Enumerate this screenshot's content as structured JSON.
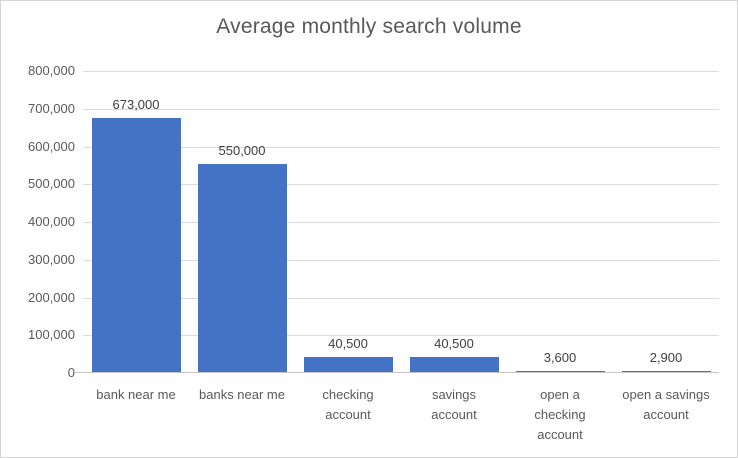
{
  "chart_data": {
    "type": "bar",
    "title": "Average monthly search volume",
    "categories": [
      "bank near me",
      "banks near me",
      "checking account",
      "savings account",
      "open a checking account",
      "open a savings account"
    ],
    "category_label_lines": [
      [
        "bank near me"
      ],
      [
        "banks near me"
      ],
      [
        "checking",
        "account"
      ],
      [
        "savings",
        "account"
      ],
      [
        "open a",
        "checking",
        "account"
      ],
      [
        "open a savings",
        "account"
      ]
    ],
    "values": [
      673000,
      550000,
      40500,
      40500,
      3600,
      2900
    ],
    "data_labels": [
      "673,000",
      "550,000",
      "40,500",
      "40,500",
      "3,600",
      "2,900"
    ],
    "y_tick_labels": [
      "0",
      "100,000",
      "200,000",
      "300,000",
      "400,000",
      "500,000",
      "600,000",
      "700,000",
      "800,000"
    ],
    "xlabel": "",
    "ylabel": "",
    "ylim": [
      0,
      800000
    ],
    "y_step": 100000,
    "grid": true,
    "legend": false,
    "colors": {
      "bar_fill": "#4472c4",
      "title_text": "#595959",
      "axis_text": "#595959",
      "data_label_text": "#404040",
      "gridline": "#dcdcdc",
      "axis_line": "#c6c6c6",
      "background": "#ffffff",
      "frame_border": "#d4d4d4"
    }
  }
}
